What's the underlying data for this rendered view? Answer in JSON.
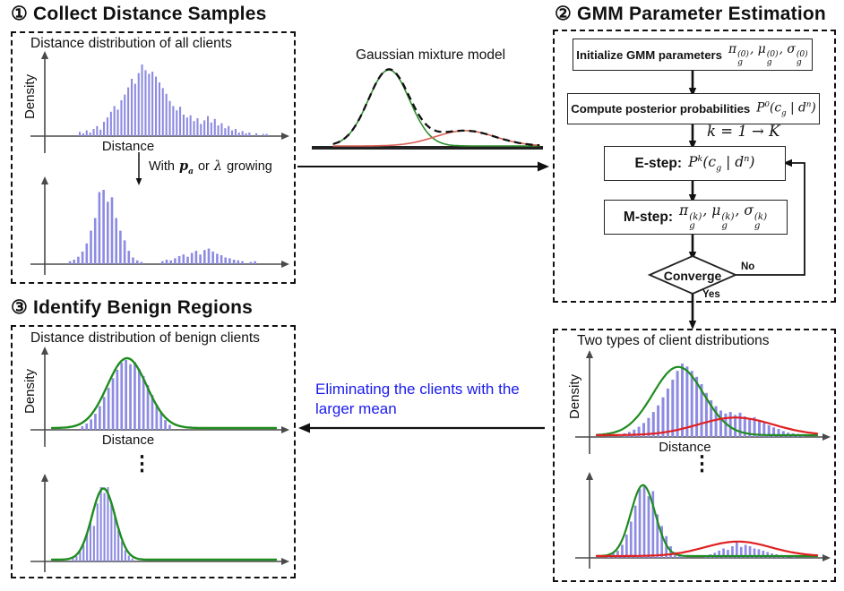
{
  "headings": {
    "s1": "① Collect Distance Samples",
    "s2": "② GMM Parameter Estimation",
    "s3": "③ Identify Benign Regions"
  },
  "panel1": {
    "title": "Distance distribution of all clients",
    "transition_label": {
      "pre": "With",
      "math1": "p_{a}",
      "mid": "or",
      "math2": "λ",
      "post": "growing"
    }
  },
  "gmm_illustration": {
    "title": "Gaussian mixture model"
  },
  "flowchart": {
    "init": {
      "label": "Initialize GMM parameters",
      "formula": "π_{g}^{(0)}, μ_{g}^{(0)}, σ_{g}^{(0)}"
    },
    "posterior": {
      "label": "Compute posterior probabilities",
      "formula": "P^{0}(c_{g} | d^{n})"
    },
    "loop_label": "k = 1 → K",
    "estep": {
      "label": "E-step:",
      "formula": "P^{k}(c_{g} | d^{n})"
    },
    "mstep": {
      "label": "M-step:",
      "formula": "π_{g}^{(k)}, μ_{g}^{(k)}, σ_{g}^{(k)}"
    },
    "converge": {
      "label": "Converge",
      "no": "No",
      "yes": "Yes"
    }
  },
  "panel4": {
    "title": "Two types of client distributions",
    "ellipsis": "⋮"
  },
  "panel3": {
    "title": "Distance distribution of benign clients",
    "ellipsis": "⋮"
  },
  "annotation": {
    "text": "Eliminating the clients with the larger mean"
  },
  "colors": {
    "bar": "#8d8be2",
    "green": "#1f8c1f",
    "red": "#e02020",
    "gmm_green": "#2f8f2f",
    "gmm_red": "#d96055",
    "axis": "#4a4a4a",
    "annotation_blue": "#1a1aee"
  },
  "chart_data": [
    {
      "id": "histA",
      "type": "histogram",
      "title": "Distance distribution of all clients",
      "ylabel": "Density",
      "xlabel": "Distance",
      "xlabel_pos": 0.34,
      "ml": 34,
      "bar_range": [
        0.12,
        0.97
      ],
      "bars": [
        0.06,
        0.04,
        0.08,
        0.05,
        0.1,
        0.14,
        0.09,
        0.2,
        0.26,
        0.34,
        0.42,
        0.37,
        0.5,
        0.58,
        0.68,
        0.8,
        0.73,
        0.88,
        1.0,
        0.92,
        0.87,
        0.9,
        0.83,
        0.75,
        0.67,
        0.59,
        0.49,
        0.42,
        0.36,
        0.41,
        0.3,
        0.26,
        0.29,
        0.21,
        0.25,
        0.17,
        0.22,
        0.28,
        0.19,
        0.24,
        0.15,
        0.18,
        0.11,
        0.14,
        0.08,
        0.1,
        0.05,
        0.07,
        0.04,
        0.05,
        0,
        0.04,
        0,
        0.03,
        0.03
      ]
    },
    {
      "id": "histB",
      "type": "histogram",
      "title": "Distance distribution with p_a or λ growing (bimodal)",
      "ml": 34,
      "bar_range": [
        0.075,
        0.92
      ],
      "bars": [
        0.04,
        0.06,
        0.1,
        0.17,
        0.28,
        0.45,
        0.62,
        0.97,
        1.0,
        0.84,
        0.9,
        0.62,
        0.45,
        0.32,
        0.18,
        0.09,
        0.05,
        0.03,
        0,
        0,
        0,
        0,
        0.04,
        0.06,
        0.05,
        0.08,
        0.11,
        0.13,
        0.1,
        0.15,
        0.18,
        0.13,
        0.19,
        0.21,
        0.17,
        0.14,
        0.12,
        0.09,
        0.08,
        0.06,
        0.05,
        0.04,
        0,
        0.03,
        0.04
      ]
    },
    {
      "id": "gmm",
      "type": "curves",
      "title": "Gaussian mixture model",
      "axis": false,
      "baseline": true,
      "mixture": true,
      "curves": [
        {
          "name": "component-1",
          "mu": 0.27,
          "sigma": 0.1,
          "amp": 1.0,
          "color": "#2f8f2f",
          "w": 1.6
        },
        {
          "name": "component-2",
          "mu": 0.64,
          "sigma": 0.145,
          "amp": 0.2,
          "color": "#d96055",
          "w": 1.6
        }
      ]
    },
    {
      "id": "histC",
      "type": "histogram",
      "title": "Two types of client distributions (upper)",
      "ylabel": "Density",
      "xlabel": "Distance",
      "xlabel_pos": 0.4,
      "ml": 34,
      "bar_range": [
        0.12,
        0.95
      ],
      "bars": [
        0.05,
        0.07,
        0.1,
        0.14,
        0.19,
        0.26,
        0.34,
        0.43,
        0.54,
        0.66,
        0.78,
        0.9,
        1.0,
        0.96,
        0.9,
        0.82,
        0.72,
        0.6,
        0.5,
        0.42,
        0.36,
        0.32,
        0.34,
        0.3,
        0.33,
        0.28,
        0.25,
        0.27,
        0.22,
        0.19,
        0.16,
        0.13,
        0.11,
        0.08,
        0.06,
        0.05,
        0.04,
        0.03
      ],
      "curves": [
        {
          "name": "benign-gaussian",
          "mu": 0.37,
          "sigma": 0.115,
          "amp": 0.93,
          "color": "#1f8c1f",
          "w": 2.2
        },
        {
          "name": "malicious-gaussian",
          "mu": 0.63,
          "sigma": 0.17,
          "amp": 0.24,
          "color": "#e02020",
          "w": 2.2
        }
      ]
    },
    {
      "id": "histD",
      "type": "histogram",
      "title": "Two types of client distributions (lower)",
      "ml": 34,
      "bar_range": [
        0.05,
        0.93
      ],
      "bars": [
        0.03,
        0.06,
        0.1,
        0.18,
        0.32,
        0.5,
        0.72,
        0.95,
        1.0,
        0.85,
        0.92,
        0.6,
        0.44,
        0.3,
        0.16,
        0.08,
        0.04,
        0.02,
        0,
        0,
        0,
        0,
        0.03,
        0.05,
        0.07,
        0.1,
        0.13,
        0.11,
        0.16,
        0.22,
        0.15,
        0.18,
        0.16,
        0.13,
        0.12,
        0.1,
        0.08,
        0.06,
        0.05,
        0.04,
        0.03,
        0,
        0.03,
        0
      ],
      "curves": [
        {
          "name": "benign-gaussian",
          "mu": 0.21,
          "sigma": 0.055,
          "amp": 0.98,
          "color": "#1f8c1f",
          "w": 2.2
        },
        {
          "name": "malicious-gaussian",
          "mu": 0.64,
          "sigma": 0.15,
          "amp": 0.2,
          "color": "#e02020",
          "w": 2.2
        }
      ]
    },
    {
      "id": "histE",
      "type": "histogram",
      "title": "Distance distribution of benign clients (upper)",
      "ylabel": "Density",
      "xlabel": "Distance",
      "xlabel_pos": 0.34,
      "ml": 34,
      "bar_range": [
        0.13,
        0.54
      ],
      "bars": [
        0.05,
        0.09,
        0.15,
        0.23,
        0.34,
        0.47,
        0.6,
        0.74,
        0.86,
        0.96,
        1.0,
        0.94,
        0.97,
        0.87,
        0.77,
        0.64,
        0.5,
        0.36,
        0.24,
        0.14,
        0.07
      ],
      "curves": [
        {
          "name": "benign-gaussian",
          "mu": 0.335,
          "sigma": 0.088,
          "amp": 1.0,
          "color": "#1f8c1f",
          "w": 2.4
        }
      ]
    },
    {
      "id": "histF",
      "type": "histogram",
      "title": "Distance distribution of benign clients (lower)",
      "ml": 34,
      "bar_range": [
        0.09,
        0.37
      ],
      "bars": [
        0.04,
        0.07,
        0.13,
        0.22,
        0.38,
        0.55,
        0.48,
        0.78,
        1.0,
        0.92,
        1.0,
        0.8,
        0.6,
        0.42,
        0.27,
        0.15,
        0.08,
        0.04
      ],
      "curves": [
        {
          "name": "benign-gaussian",
          "mu": 0.23,
          "sigma": 0.052,
          "amp": 0.96,
          "color": "#1f8c1f",
          "w": 2.4
        }
      ]
    }
  ]
}
